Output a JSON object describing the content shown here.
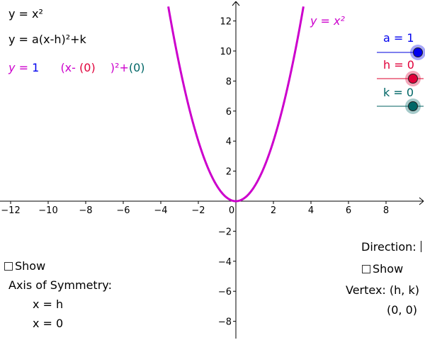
{
  "colors": {
    "parabola": "#cc00cc",
    "a": "#0000ee",
    "h": "#e0003a",
    "k": "#006666",
    "axis": "#000000"
  },
  "left_panel": {
    "line1": "y = x²",
    "line2": "y = a(x-h)²+k",
    "eq_y": "y",
    "eq_eq": "=",
    "eq_a": "1",
    "eq_x": "(x-",
    "eq_h": "(0)",
    "eq_sq": ")²+",
    "eq_k": "(0)"
  },
  "plot_label": {
    "prefix": "y = x",
    "sup": "²"
  },
  "sliders": [
    {
      "label": "a = 1",
      "value": 1,
      "min": -5,
      "max": 1
    },
    {
      "label": "h = 0",
      "value": 0,
      "min": -5,
      "max": 0
    },
    {
      "label": "k = 0",
      "value": 0,
      "min": -5,
      "max": 0
    }
  ],
  "axis_panel": {
    "show_label": "Show",
    "title": "Axis of Symmetry:",
    "line1": "x = h",
    "line2": "x = 0"
  },
  "right_panel": {
    "direction_label": "Direction:",
    "show_label": "Show",
    "vertex_label": "Vertex:  (h, k)",
    "vertex_value": "(0, 0)"
  },
  "chart_data": {
    "type": "line",
    "function": "y = x²",
    "x_range": [
      -12.5,
      10
    ],
    "y_range": [
      -9,
      13
    ],
    "x_ticks": [
      -12,
      -10,
      -8,
      -6,
      -4,
      -2,
      0,
      2,
      4,
      6,
      8
    ],
    "y_ticks": [
      -8,
      -6,
      -4,
      -2,
      2,
      4,
      6,
      8,
      10,
      12
    ],
    "series": [
      {
        "x": [
          -3.6,
          -3,
          -2,
          -1,
          0,
          1,
          2,
          3,
          3.6
        ],
        "y": [
          12.96,
          9,
          4,
          1,
          0,
          1,
          4,
          9,
          12.96
        ]
      }
    ]
  }
}
